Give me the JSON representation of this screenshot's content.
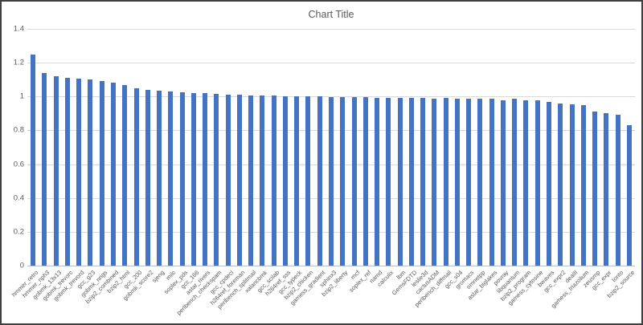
{
  "chart_data": {
    "type": "bar",
    "title": "Chart Title",
    "xlabel": "",
    "ylabel": "",
    "ylim": [
      0,
      1.4
    ],
    "yticks": [
      "0",
      "0.2",
      "0.4",
      "0.6",
      "0.8",
      "1",
      "1.2",
      "1.4"
    ],
    "grid": "horizontal",
    "legend": "none",
    "bar_color": "#4472C4",
    "text_color": "#595959",
    "gridline_color": "#D9D9D9",
    "axis_line_color": "#BFBFBF",
    "categories": [
      "hmmer_retro",
      "hmmer_nph3",
      "gobmk_13x13",
      "gobmk_trevorc",
      "gobmk_trevord",
      "gcc_g23",
      "gobmk_nngs",
      "bzip2_combined",
      "bzip2_html",
      "gcc_200",
      "gobmk_score2",
      "sjeng",
      "milc",
      "soplex_pds",
      "gcc_166",
      "astar_rivers",
      "perlbench_checkspam",
      "gcc_cpdecl",
      "h264ref_foreman",
      "perlbench_splitmail",
      "xalancbmk",
      "gcc_scilab",
      "h264ref_sss",
      "gcc_typeck",
      "bzip2_chicken",
      "gamess_gradient",
      "sphinx3",
      "bzip2_liberty",
      "mcf",
      "soplex_ref",
      "namd",
      "calculix",
      "lbm",
      "GemsFDTD",
      "leslie3d",
      "cactusADM",
      "perlbench_diffmail",
      "gcc_s04",
      "gromacs",
      "omnetpp",
      "astar_biglakes",
      "povray",
      "libquantum",
      "bzip2_program",
      "gamess_cytosine",
      "bwaves",
      "gcc_expr2",
      "dealII",
      "gamess_triazolium",
      "zeusmp",
      "gcc_expr",
      "tonto",
      "bzip2_source"
    ],
    "values": [
      1.25,
      1.14,
      1.12,
      1.11,
      1.105,
      1.1,
      1.09,
      1.08,
      1.07,
      1.05,
      1.04,
      1.035,
      1.03,
      1.025,
      1.02,
      1.02,
      1.015,
      1.01,
      1.01,
      1.005,
      1.005,
      1.005,
      1.0,
      1.0,
      1.0,
      1.0,
      0.995,
      0.995,
      0.995,
      0.995,
      0.99,
      0.99,
      0.99,
      0.99,
      0.99,
      0.985,
      0.99,
      0.985,
      0.985,
      0.985,
      0.985,
      0.98,
      0.985,
      0.98,
      0.98,
      0.97,
      0.96,
      0.955,
      0.95,
      0.91,
      0.9,
      0.89,
      0.83
    ]
  }
}
